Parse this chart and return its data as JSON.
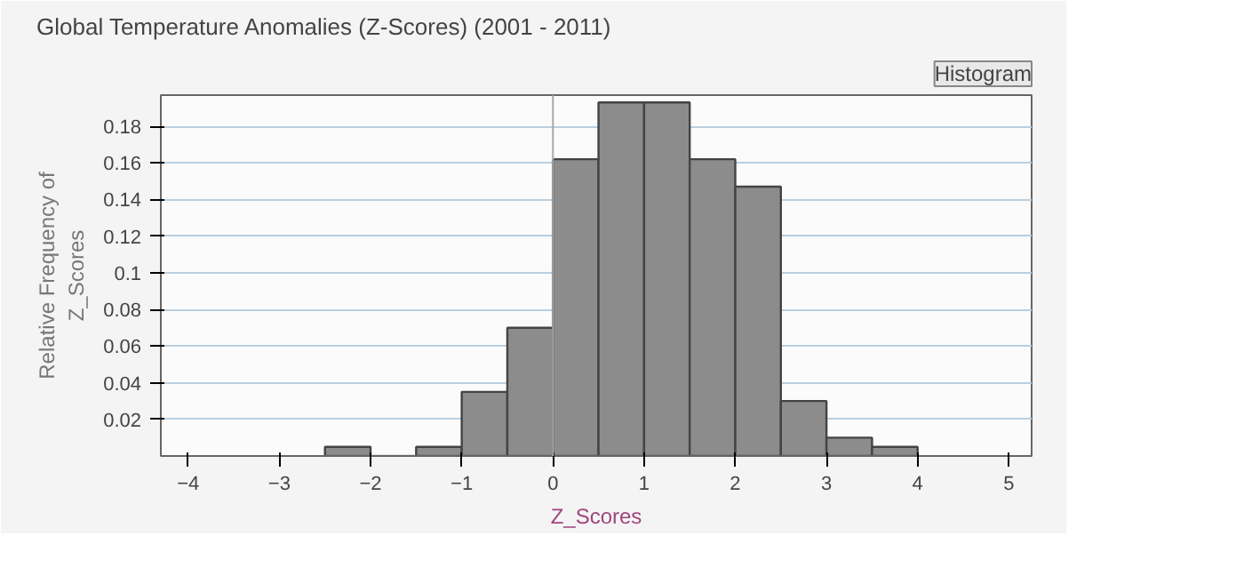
{
  "chart_data": {
    "type": "histogram",
    "title": "Global Temperature Anomalies (Z-Scores) (2001 - 2011)",
    "xlabel": "Z_Scores",
    "ylabel": "Relative Frequency of\nZ_Scores",
    "annotations": [
      "Histogram"
    ],
    "bins": [
      -2.5,
      -2,
      -1.5,
      -1,
      -0.5,
      0,
      0.5,
      1,
      1.5,
      2,
      2.5,
      3,
      3.5,
      4
    ],
    "values": [
      0.005,
      0,
      0.005,
      0.035,
      0.07,
      0.162,
      0.193,
      0.193,
      0.162,
      0.147,
      0.03,
      0.01,
      0.005
    ],
    "color": "#8c8c8c",
    "xlim": [
      -4.3,
      5.25
    ],
    "xticks": [
      -4,
      -3,
      -2,
      -1,
      0,
      1,
      2,
      3,
      4,
      5
    ],
    "ylim": [
      0,
      0.197
    ],
    "yticks": [
      0.02,
      0.04,
      0.06,
      0.08,
      0.1,
      0.12,
      0.14,
      0.16,
      0.18
    ],
    "ref_lines": [
      {
        "axis": "x",
        "value": 0,
        "label": null,
        "color": "#aaaaaa"
      }
    ],
    "grid": "y"
  }
}
